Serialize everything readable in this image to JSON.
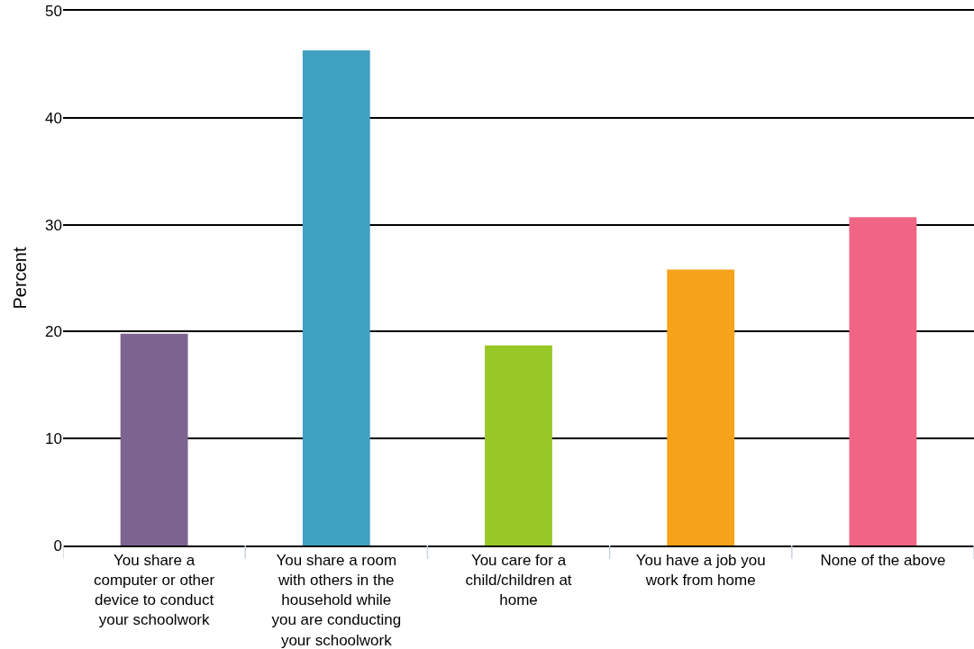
{
  "chart_data": {
    "type": "bar",
    "ylabel": "Percent",
    "categories": [
      "You share a computer or other device to conduct your schoolwork",
      "You share a room with others in the household while you are conducting your schoolwork",
      "You care for a child/children at home",
      "You have a job you work from home",
      "None of the above"
    ],
    "values": [
      19.8,
      46.3,
      18.7,
      25.8,
      30.7
    ],
    "colors": [
      "#7d638f",
      "#3fa1c2",
      "#97c827",
      "#f4a31a",
      "#f06585"
    ],
    "ylim": [
      0,
      50
    ],
    "yticks": [
      0,
      10,
      20,
      30,
      40,
      50
    ],
    "grid": "y"
  }
}
